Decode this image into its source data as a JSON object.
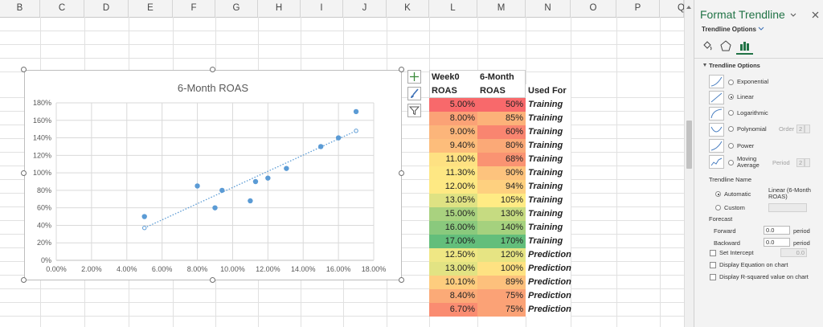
{
  "columns": [
    "B",
    "C",
    "D",
    "E",
    "F",
    "G",
    "H",
    "I",
    "J",
    "K",
    "L",
    "M",
    "N",
    "O",
    "P",
    "Q"
  ],
  "chart": {
    "title": "6-Month ROAS",
    "y_tick_labels": [
      "180%",
      "160%",
      "140%",
      "120%",
      "100%",
      "80%",
      "60%",
      "40%",
      "20%",
      "0%"
    ],
    "x_tick_labels": [
      "0.00%",
      "2.00%",
      "4.00%",
      "6.00%",
      "8.00%",
      "10.00%",
      "12.00%",
      "14.00%",
      "16.00%",
      "18.00%"
    ],
    "marker_color": "#5b9bd5"
  },
  "chart_data": {
    "type": "scatter",
    "title": "6-Month ROAS",
    "xlim": [
      0,
      0.18
    ],
    "ylim": [
      0,
      1.8
    ],
    "x": [
      0.05,
      0.08,
      0.09,
      0.094,
      0.11,
      0.113,
      0.12,
      0.1305,
      0.15,
      0.16,
      0.17
    ],
    "y": [
      0.5,
      0.85,
      0.6,
      0.8,
      0.68,
      0.9,
      0.94,
      1.05,
      1.3,
      1.4,
      1.7
    ],
    "trendline": {
      "type": "linear",
      "x": [
        0.05,
        0.17
      ],
      "y": [
        0.37,
        1.48
      ]
    },
    "grid": true,
    "legend": "none"
  },
  "side_buttons": [
    "plus-icon",
    "brush-icon",
    "filter-icon"
  ],
  "table": {
    "header1": {
      "week0": "Week0",
      "month6": "6-Month"
    },
    "header2": {
      "week0": "ROAS",
      "month6": "ROAS",
      "used": "Used For"
    },
    "rows": [
      {
        "week0": "5.00%",
        "month6": "50%",
        "used": "Training",
        "c1": "#f8696b",
        "c2": "#f8696b"
      },
      {
        "week0": "8.00%",
        "month6": "85%",
        "used": "Training",
        "c1": "#fba276",
        "c2": "#fcb279"
      },
      {
        "week0": "9.00%",
        "month6": "60%",
        "used": "Training",
        "c1": "#fcb57a",
        "c2": "#f98570"
      },
      {
        "week0": "9.40%",
        "month6": "80%",
        "used": "Training",
        "c1": "#fdbd7b",
        "c2": "#fba977"
      },
      {
        "week0": "11.00%",
        "month6": "68%",
        "used": "Training",
        "c1": "#fee182",
        "c2": "#fa9372"
      },
      {
        "week0": "11.30%",
        "month6": "90%",
        "used": "Training",
        "c1": "#fee783",
        "c2": "#fdc37d"
      },
      {
        "week0": "12.00%",
        "month6": "94%",
        "used": "Training",
        "c1": "#fee983",
        "c2": "#fed07f"
      },
      {
        "week0": "13.05%",
        "month6": "105%",
        "used": "Training",
        "c1": "#dfe283",
        "c2": "#ffeb84"
      },
      {
        "week0": "15.00%",
        "month6": "130%",
        "used": "Training",
        "c1": "#a9d27f",
        "c2": "#c6db81"
      },
      {
        "week0": "16.00%",
        "month6": "140%",
        "used": "Training",
        "c1": "#8ac97d",
        "c2": "#a5d17e"
      },
      {
        "week0": "17.00%",
        "month6": "170%",
        "used": "Training",
        "c1": "#63be7b",
        "c2": "#63be7b"
      },
      {
        "week0": "12.50%",
        "month6": "120%",
        "used": "Prediction",
        "c1": "#efe784",
        "c2": "#e6e483"
      },
      {
        "week0": "13.00%",
        "month6": "100%",
        "used": "Prediction",
        "c1": "#e2e383",
        "c2": "#fee282"
      },
      {
        "week0": "10.10%",
        "month6": "89%",
        "used": "Prediction",
        "c1": "#fecd7e",
        "c2": "#fdc07c"
      },
      {
        "week0": "8.40%",
        "month6": "75%",
        "used": "Prediction",
        "c1": "#fbaa77",
        "c2": "#fba276"
      },
      {
        "week0": "6.70%",
        "month6": "75%",
        "used": "Prediction",
        "c1": "#fa8c71",
        "c2": "#fba276"
      }
    ]
  },
  "pane": {
    "title": "Format Trendline",
    "tab_label": "Trendline Options",
    "section": "Trendline Options",
    "types": [
      "Exponential",
      "Linear",
      "Logarithmic",
      "Polynomial",
      "Power",
      "Moving Average"
    ],
    "selected_type": "Linear",
    "order_label": "Order",
    "order_value": "2",
    "period_label": "Period",
    "period_value": "2",
    "name_label": "Trendline Name",
    "automatic_label": "Automatic",
    "automatic_value": "Linear (6-Month ROAS)",
    "custom_label": "Custom",
    "forecast_label": "Forecast",
    "forward_label": "Forward",
    "forward_value": "0.0",
    "backward_label": "Backward",
    "backward_value": "0.0",
    "period_unit": "period",
    "set_intercept_label": "Set Intercept",
    "intercept_value": "0.0",
    "display_eq_label": "Display Equation on chart",
    "display_r2_label": "Display R-squared value on chart"
  }
}
